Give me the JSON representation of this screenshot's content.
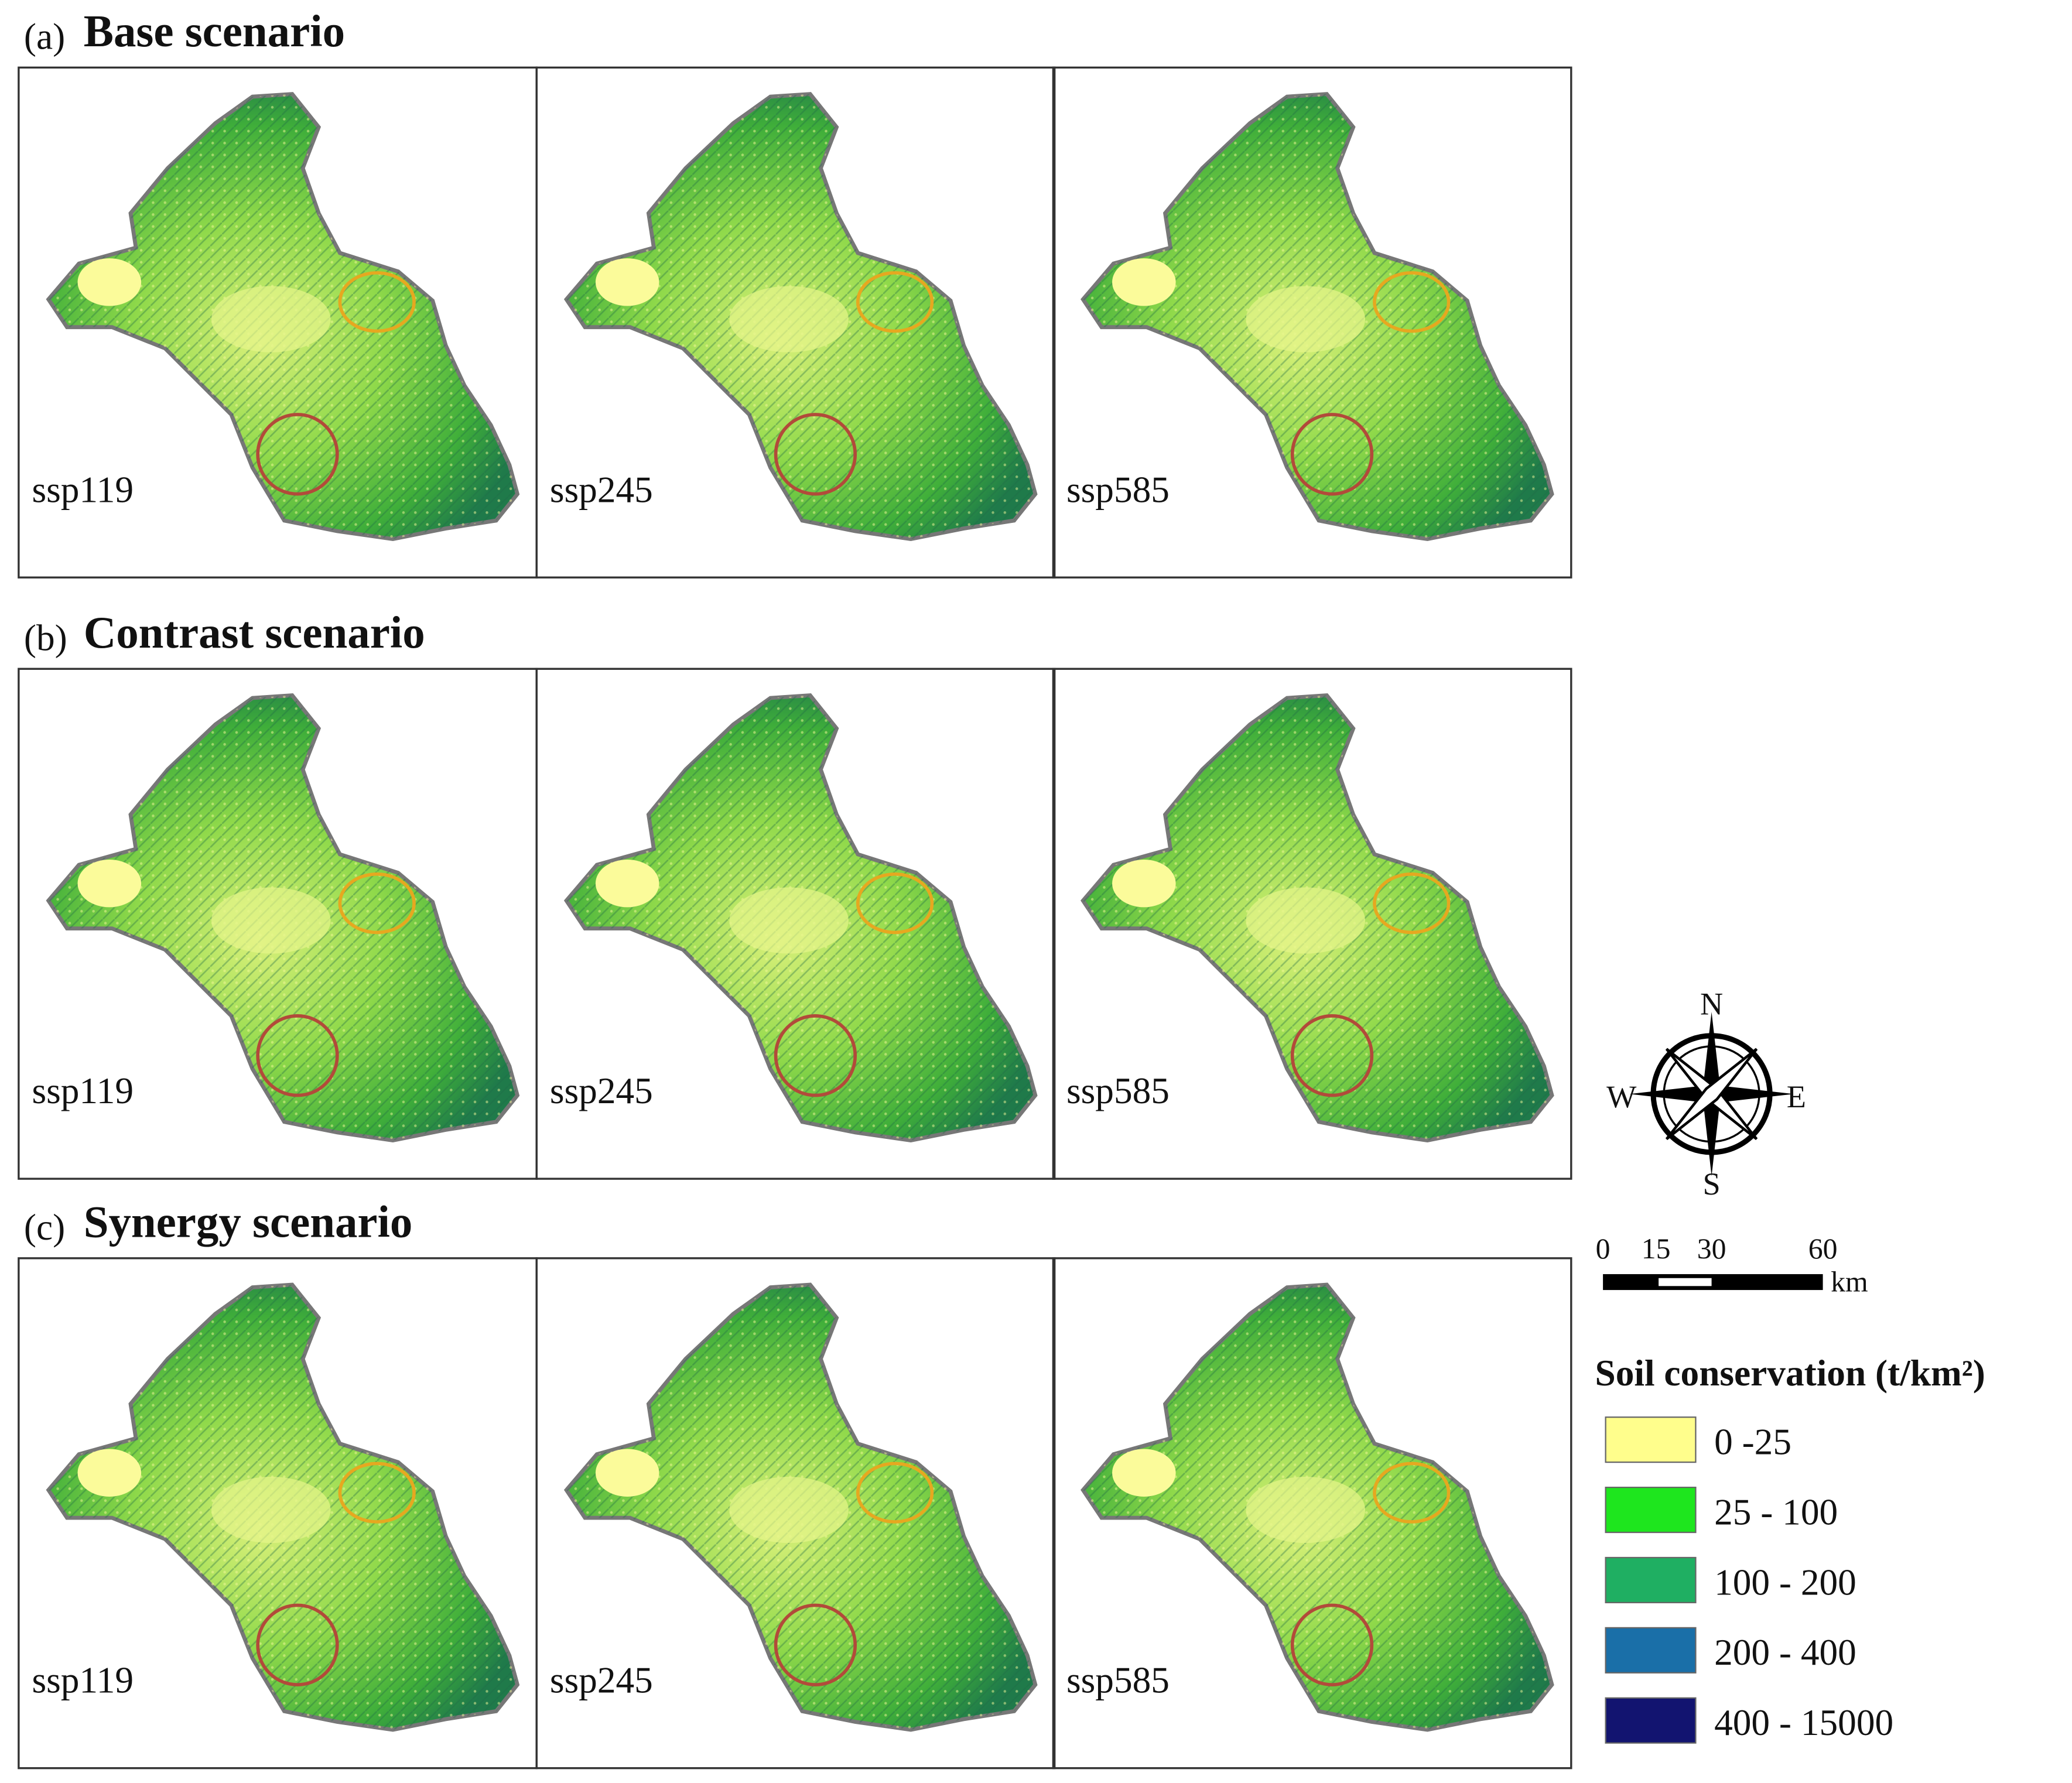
{
  "sections": [
    {
      "letter": "(a)",
      "title": "Base scenario",
      "maps": [
        "ssp119",
        "ssp245",
        "ssp585"
      ]
    },
    {
      "letter": "(b)",
      "title": "Contrast scenario",
      "maps": [
        "ssp119",
        "ssp245",
        "ssp585"
      ]
    },
    {
      "letter": "(c)",
      "title": "Synergy scenario",
      "maps": [
        "ssp119",
        "ssp245",
        "ssp585"
      ]
    }
  ],
  "compass": {
    "north": "N",
    "west": "W",
    "east": "E",
    "south": "S"
  },
  "scale_bar": {
    "labels": [
      "0",
      "15",
      "30",
      "60"
    ],
    "unit": "km"
  },
  "legend": {
    "title": "Soil conservation (t/km²)",
    "items": [
      {
        "label": "0 -25",
        "color": "#fffe8c"
      },
      {
        "label": "25 - 100",
        "color": "#1ee61e"
      },
      {
        "label": "100 - 200",
        "color": "#1faf62"
      },
      {
        "label": "200 - 400",
        "color": "#1a6fa8"
      },
      {
        "label": "400 - 15000",
        "color": "#121470"
      }
    ]
  }
}
